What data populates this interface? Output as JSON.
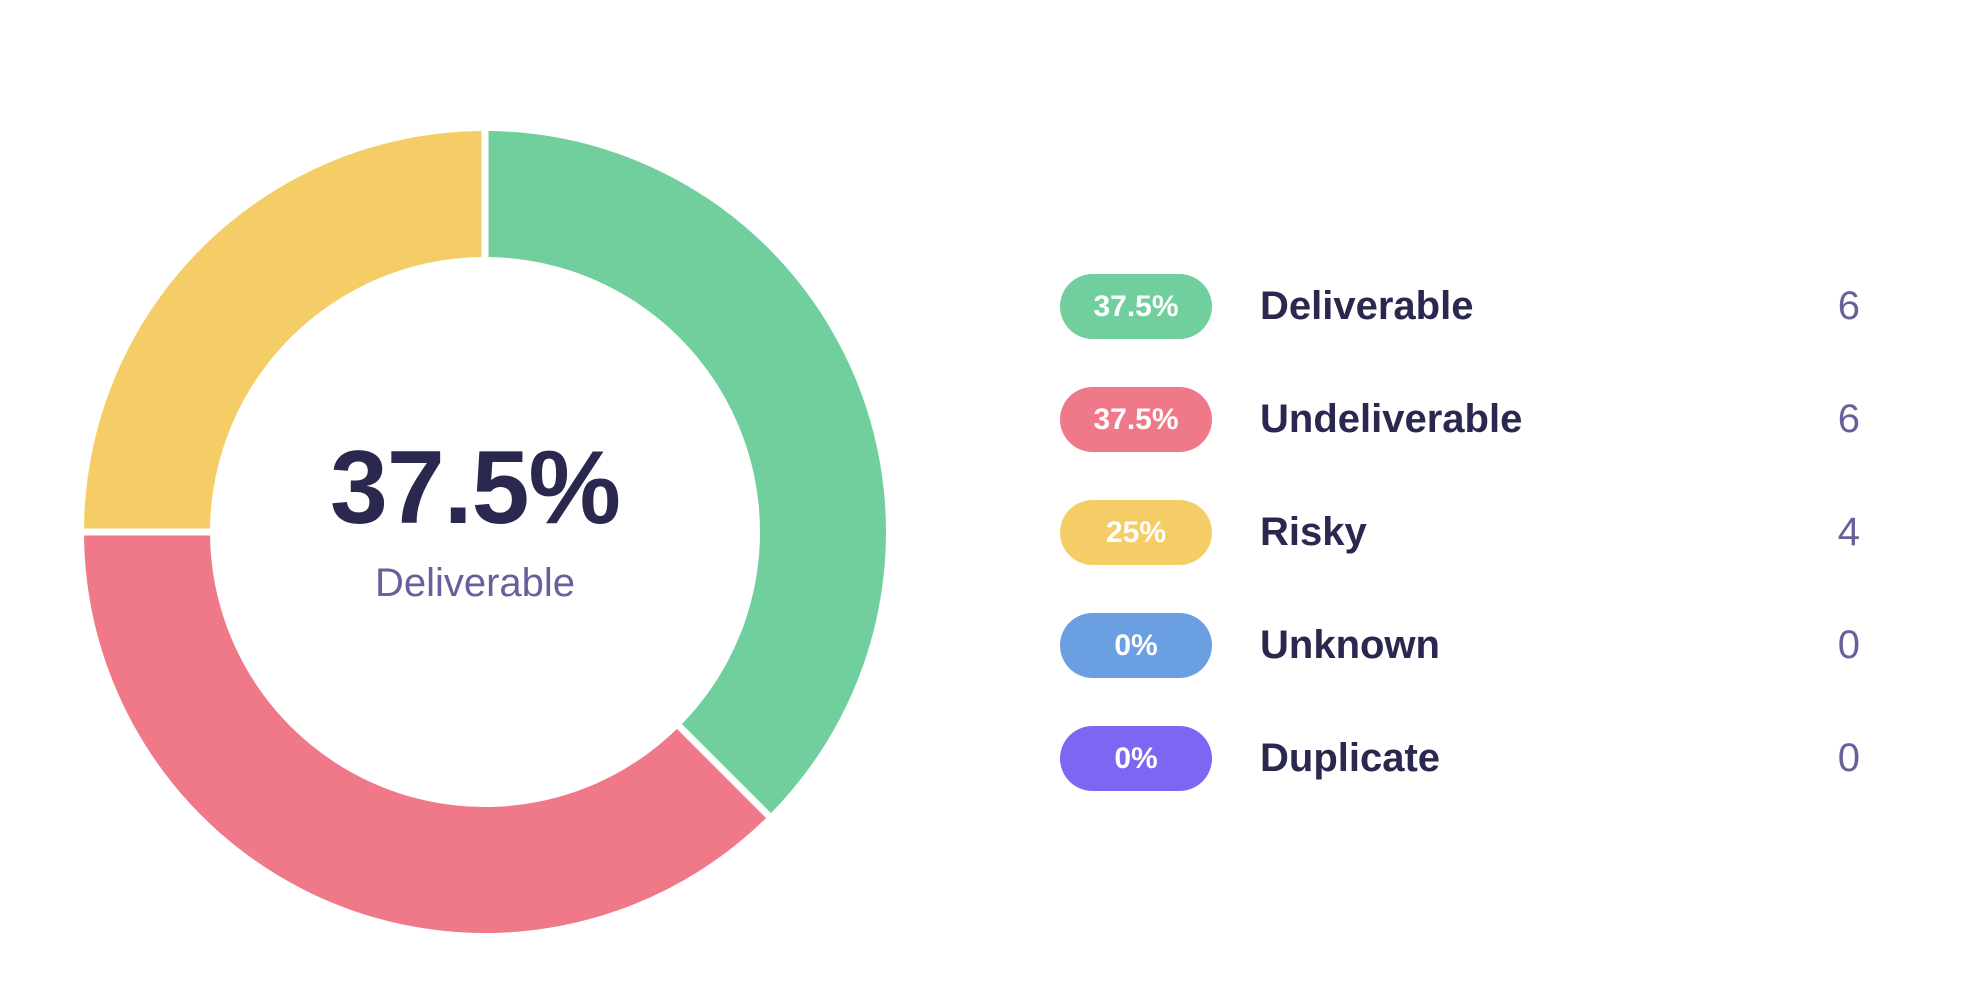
{
  "center": {
    "value": "37.5%",
    "label": "Deliverable"
  },
  "chart_data": {
    "type": "pie",
    "variant": "donut",
    "slices": [
      {
        "name": "Deliverable",
        "value": 6,
        "percent_label": "37.5%",
        "count_label": "6",
        "color": "#70cf9d"
      },
      {
        "name": "Undeliverable",
        "value": 6,
        "percent_label": "37.5%",
        "count_label": "6",
        "color": "#ef7889"
      },
      {
        "name": "Risky",
        "value": 4,
        "percent_label": "25%",
        "count_label": "4",
        "color": "#f4cd67"
      },
      {
        "name": "Unknown",
        "value": 0,
        "percent_label": "0%",
        "count_label": "0",
        "color": "#6a9fe1"
      },
      {
        "name": "Duplicate",
        "value": 0,
        "percent_label": "0%",
        "count_label": "0",
        "color": "#7c66f2"
      }
    ],
    "legend_position": "right"
  }
}
